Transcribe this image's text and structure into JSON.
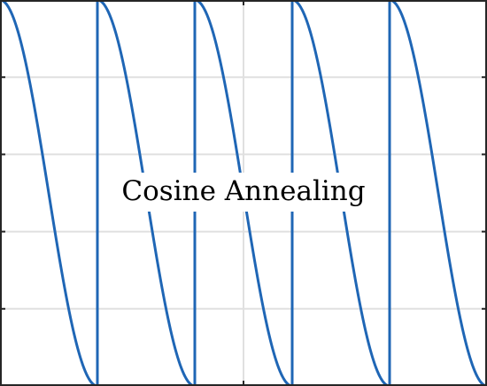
{
  "chart_data": {
    "type": "line",
    "title": "",
    "xlabel": "",
    "ylabel": "",
    "xlim": [
      0,
      5
    ],
    "ylim": [
      0,
      1
    ],
    "grid": true,
    "x_gridlines": [
      2.5
    ],
    "y_gridlines": [
      0.2,
      0.4,
      0.6,
      0.8
    ],
    "x_ticks": [
      2.5
    ],
    "y_ticks": [
      0.2,
      0.4,
      0.6,
      0.8
    ],
    "restarts": [
      0,
      1,
      2,
      3,
      4
    ],
    "cycle_length": 1,
    "y_max": 1,
    "y_min": 0,
    "annotation": "Cosine Annealing",
    "series": [
      {
        "color": "#1f66b5",
        "function": "cosine annealing with warm restarts: y = y_min + 0.5*(y_max - y_min)*(1 + cos(pi * t / cycle_length))"
      }
    ]
  }
}
